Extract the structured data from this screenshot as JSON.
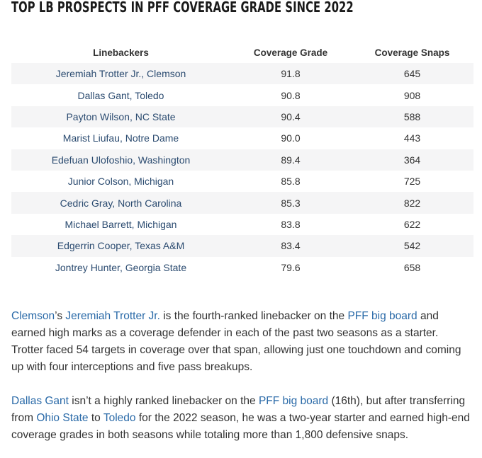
{
  "title": "TOP LB PROSPECTS IN PFF COVERAGE GRADE SINCE 2022",
  "table": {
    "headers": [
      "Linebackers",
      "Coverage Grade",
      "Coverage Snaps"
    ],
    "rows": [
      [
        "Jeremiah Trotter Jr., Clemson",
        "91.8",
        "645"
      ],
      [
        "Dallas Gant, Toledo",
        "90.8",
        "908"
      ],
      [
        "Payton Wilson, NC State",
        "90.4",
        "588"
      ],
      [
        "Marist Liufau, Notre Dame",
        "90.0",
        "443"
      ],
      [
        "Edefuan Ulofoshio, Washington",
        "89.4",
        "364"
      ],
      [
        "Junior Colson, Michigan",
        "85.8",
        "725"
      ],
      [
        "Cedric Gray, North Carolina",
        "85.3",
        "822"
      ],
      [
        "Michael Barrett, Michigan",
        "83.8",
        "622"
      ],
      [
        "Edgerrin Cooper, Texas A&M",
        "83.4",
        "542"
      ],
      [
        "Jontrey Hunter, Georgia State",
        "79.6",
        "658"
      ]
    ]
  },
  "paragraph1": {
    "link_school": "Clemson",
    "text_a": "’s ",
    "link_player": "Jeremiah Trotter Jr.",
    "text_b": " is the fourth-ranked linebacker on the ",
    "link_board": "PFF big board",
    "text_c": " and earned high marks as a coverage defender in each of the past two seasons as a starter. Trotter faced 54 targets in coverage over that span, allowing just one touchdown and coming up with four interceptions and five pass breakups."
  },
  "paragraph2": {
    "link_player": "Dallas Gant",
    "text_a": " isn’t a highly ranked linebacker on the ",
    "link_board": "PFF big board",
    "text_b": " (16th), but after transferring from ",
    "link_school1": "Ohio State",
    "text_c": " to ",
    "link_school2": "Toledo",
    "text_d": " for the 2022 season, he was a two-year starter and earned high-end coverage grades in both seasons while totaling more than 1,800 defensive snaps."
  }
}
